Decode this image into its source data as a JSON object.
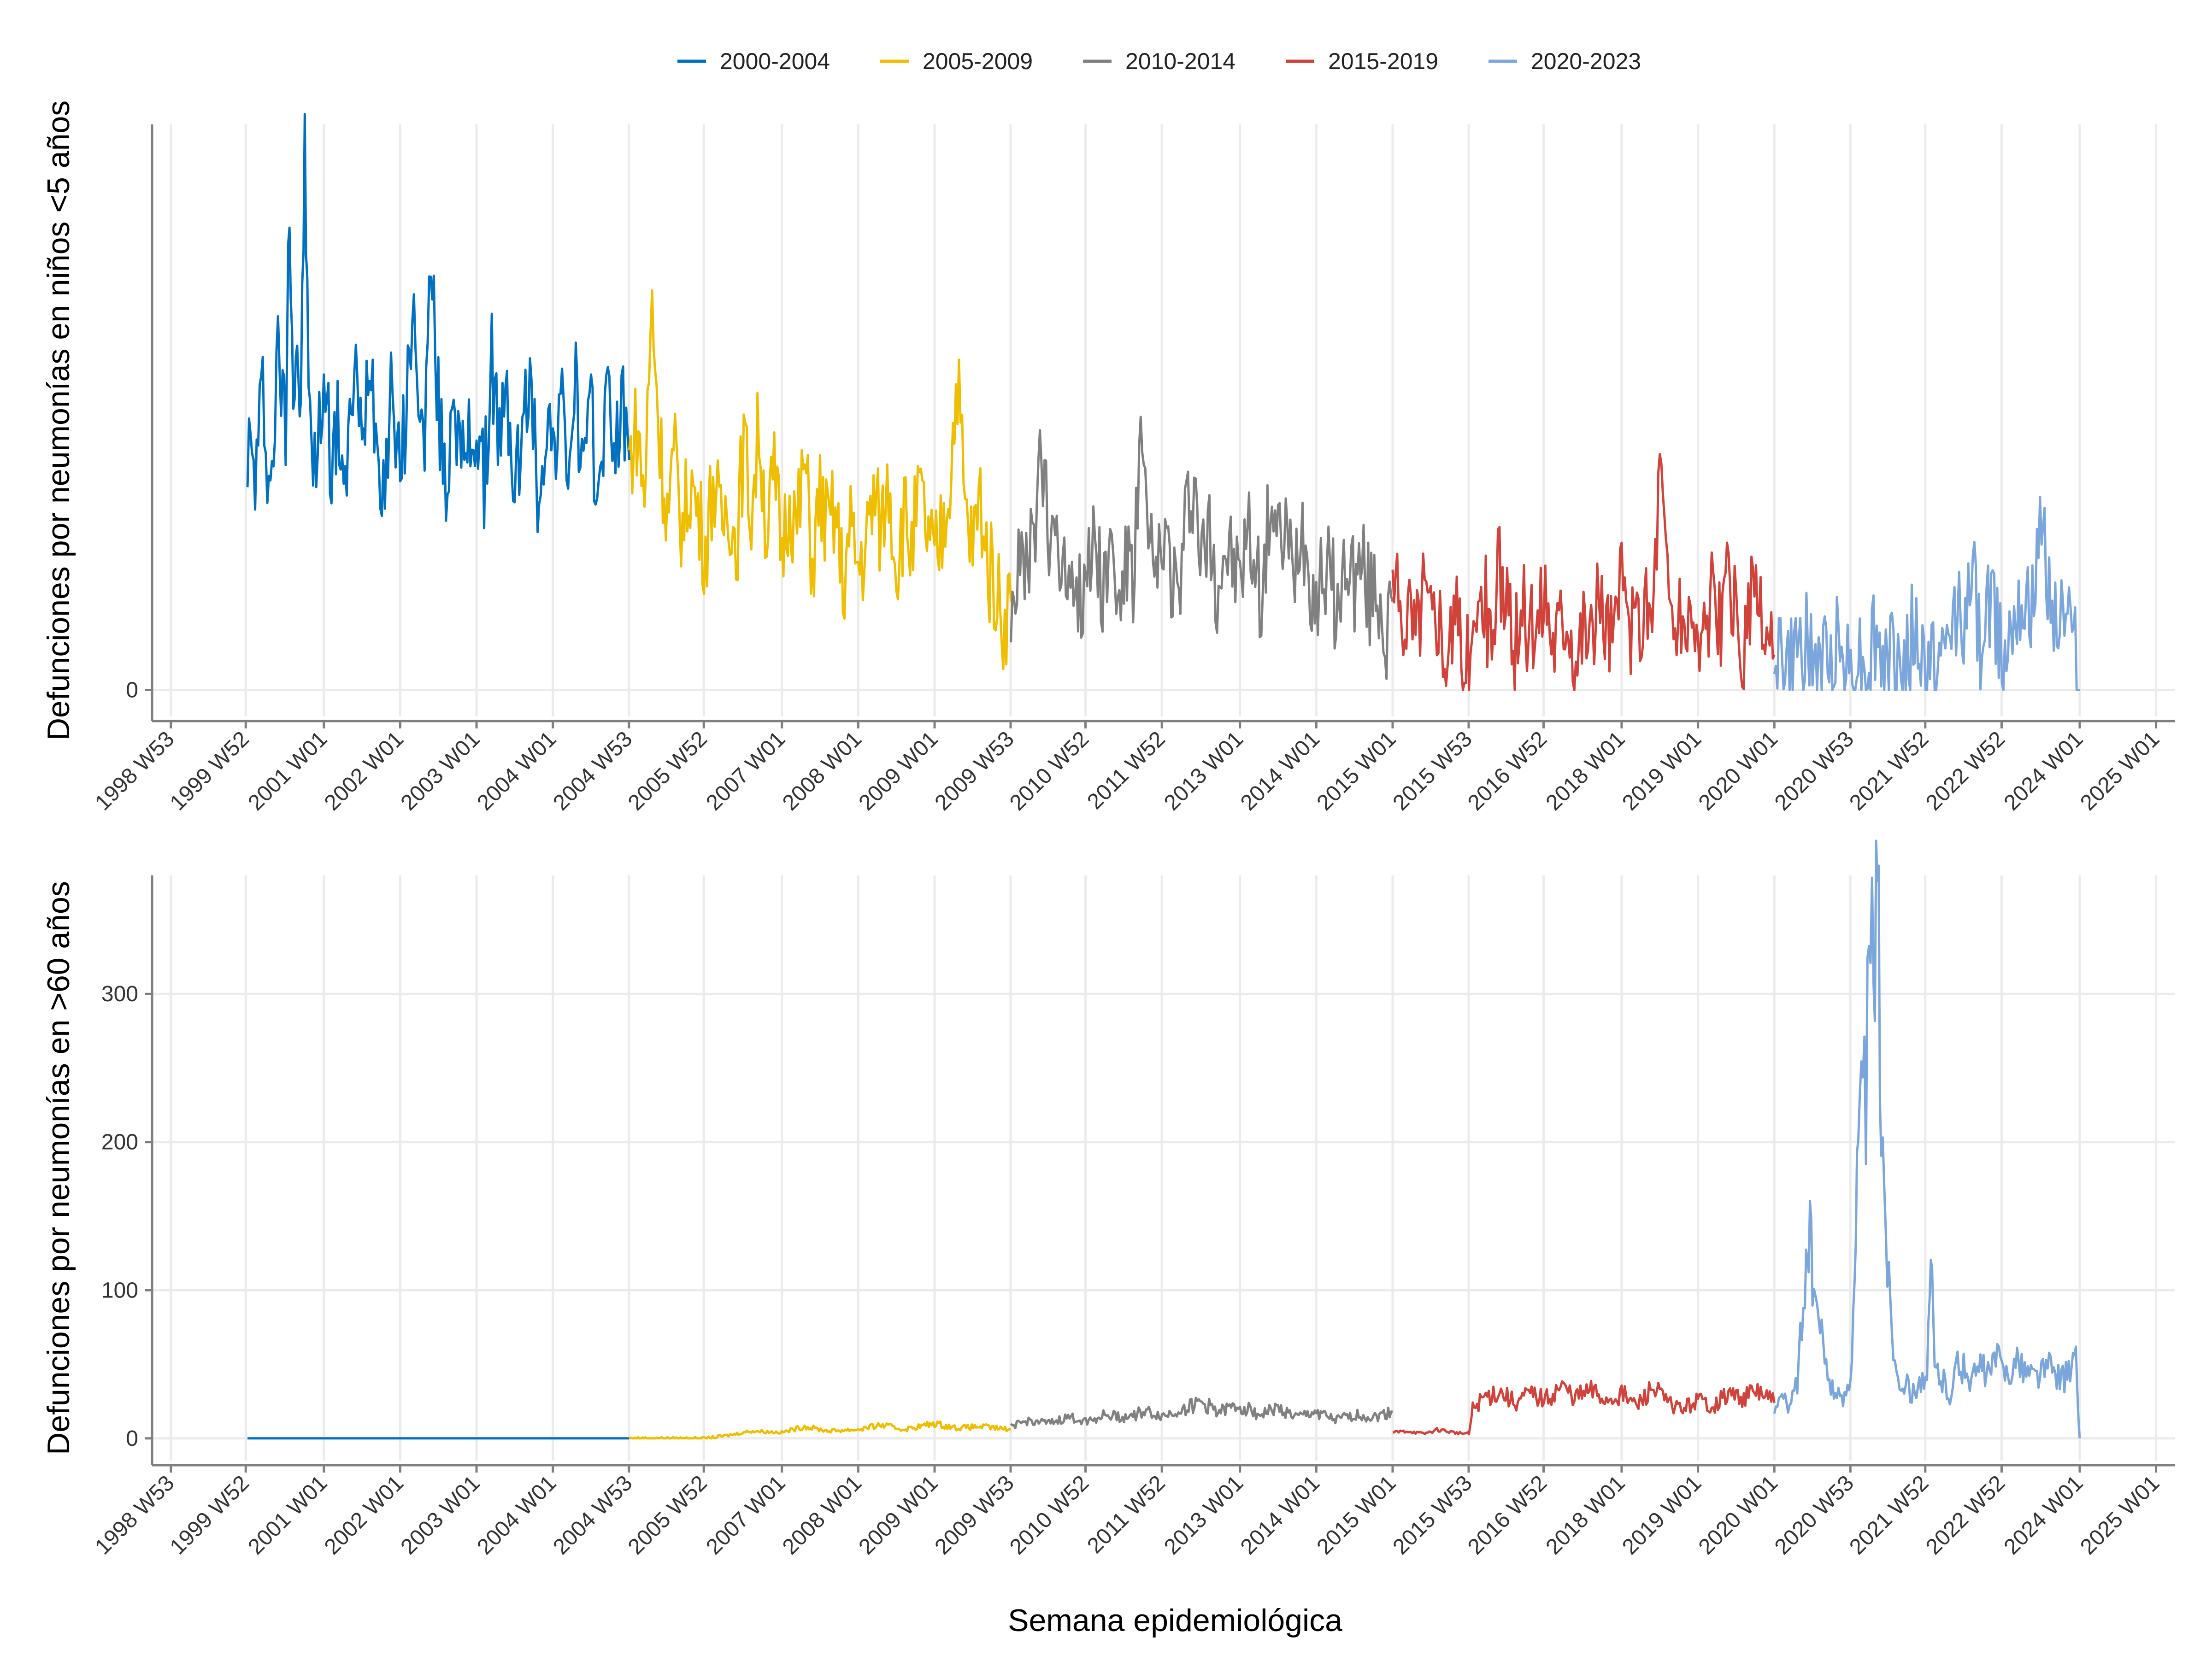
{
  "chart_data": {
    "type": "line",
    "legend_position": "top-center",
    "legend_entries": [
      {
        "label": "2000-2004",
        "color": "#0070C0"
      },
      {
        "label": "2005-2009",
        "color": "#F0BE00"
      },
      {
        "label": "2010-2014",
        "color": "#808080"
      },
      {
        "label": "2015-2019",
        "color": "#D0423A"
      },
      {
        "label": "2020-2023",
        "color": "#7BA6DB"
      }
    ],
    "x_ticks": [
      "1998 W53",
      "1999 W52",
      "2001 W01",
      "2002 W01",
      "2003 W01",
      "2004 W01",
      "2004 W53",
      "2005 W52",
      "2007 W01",
      "2008 W01",
      "2009 W01",
      "2009 W53",
      "2010 W52",
      "2011 W52",
      "2013 W01",
      "2014 W01",
      "2015 W01",
      "2015 W53",
      "2016 W52",
      "2018 W01",
      "2019 W01",
      "2020 W01",
      "2020 W53",
      "2021 W52",
      "2022 W52",
      "2024 W01",
      "2025 W01"
    ],
    "xlabel": "Semana epidemiológica",
    "grid": true,
    "panels": [
      {
        "ylabel": "Defunciones por neumonías en niños <5 años",
        "ylim": [
          -3,
          64
        ],
        "y_ticks": [
          0
        ],
        "series": [
          {
            "name": "2000-2004",
            "color": "#0070C0",
            "x": [
              2000.0,
              2000.1,
              2000.2,
              2000.3,
              2000.4,
              2000.5,
              2000.55,
              2000.6,
              2000.65,
              2000.7,
              2000.75,
              2000.8,
              2000.9,
              2001.0,
              2001.1,
              2001.2,
              2001.3,
              2001.4,
              2001.5,
              2001.6,
              2001.7,
              2001.8,
              2001.9,
              2002.0,
              2002.1,
              2002.2,
              2002.3,
              2002.4,
              2002.5,
              2002.6,
              2002.7,
              2002.8,
              2002.9,
              2003.0,
              2003.1,
              2003.2,
              2003.3,
              2003.4,
              2003.5,
              2003.6,
              2003.7,
              2003.8,
              2003.9,
              2004.0,
              2004.1,
              2004.2,
              2004.3,
              2004.4,
              2004.5,
              2004.6,
              2004.7,
              2004.8,
              2004.9,
              2005.0
            ],
            "values": [
              28,
              24,
              34,
              22,
              38,
              30,
              58,
              34,
              40,
              30,
              63,
              32,
              24,
              36,
              26,
              30,
              22,
              38,
              26,
              40,
              28,
              24,
              36,
              22,
              36,
              42,
              26,
              48,
              32,
              22,
              36,
              24,
              28,
              30,
              22,
              38,
              28,
              32,
              24,
              28,
              36,
              22,
              30,
              28,
              32,
              26,
              34,
              24,
              30,
              22,
              34,
              28,
              32,
              26
            ]
          },
          {
            "name": "2005-2009",
            "color": "#F0BE00",
            "x": [
              2005.0,
              2005.1,
              2005.2,
              2005.3,
              2005.4,
              2005.5,
              2005.6,
              2005.7,
              2005.8,
              2005.9,
              2006.0,
              2006.1,
              2006.2,
              2006.3,
              2006.4,
              2006.5,
              2006.6,
              2006.7,
              2006.8,
              2006.9,
              2007.0,
              2007.1,
              2007.2,
              2007.3,
              2007.4,
              2007.5,
              2007.6,
              2007.7,
              2007.8,
              2007.9,
              2008.0,
              2008.1,
              2008.2,
              2008.3,
              2008.4,
              2008.5,
              2008.6,
              2008.7,
              2008.8,
              2008.9,
              2009.0,
              2009.1,
              2009.2,
              2009.3,
              2009.4,
              2009.5,
              2009.6,
              2009.7,
              2009.8,
              2009.9,
              2010.0
            ],
            "values": [
              26,
              30,
              22,
              44,
              28,
              20,
              26,
              18,
              24,
              20,
              16,
              24,
              18,
              22,
              16,
              28,
              20,
              30,
              18,
              24,
              16,
              22,
              18,
              26,
              14,
              22,
              18,
              20,
              12,
              18,
              14,
              16,
              22,
              18,
              24,
              14,
              20,
              16,
              22,
              18,
              14,
              18,
              24,
              36,
              20,
              16,
              22,
              14,
              12,
              8,
              10
            ]
          },
          {
            "name": "2010-2014",
            "color": "#808080",
            "x": [
              2010.0,
              2010.1,
              2010.2,
              2010.3,
              2010.4,
              2010.5,
              2010.6,
              2010.7,
              2010.8,
              2010.9,
              2011.0,
              2011.1,
              2011.2,
              2011.3,
              2011.4,
              2011.5,
              2011.6,
              2011.7,
              2011.8,
              2011.9,
              2012.0,
              2012.1,
              2012.2,
              2012.3,
              2012.4,
              2012.5,
              2012.6,
              2012.7,
              2012.8,
              2012.9,
              2013.0,
              2013.1,
              2013.2,
              2013.3,
              2013.4,
              2013.5,
              2013.6,
              2013.7,
              2013.8,
              2013.9,
              2014.0,
              2014.1,
              2014.2,
              2014.3,
              2014.4,
              2014.5,
              2014.6,
              2014.7,
              2014.8,
              2014.9,
              2015.0
            ],
            "values": [
              10,
              14,
              12,
              18,
              26,
              16,
              20,
              12,
              16,
              10,
              14,
              18,
              12,
              16,
              10,
              14,
              12,
              28,
              16,
              12,
              18,
              14,
              10,
              20,
              24,
              14,
              18,
              12,
              16,
              14,
              12,
              18,
              14,
              10,
              22,
              16,
              18,
              12,
              20,
              14,
              10,
              14,
              12,
              8,
              16,
              12,
              14,
              10,
              12,
              6,
              10
            ]
          },
          {
            "name": "2015-2019",
            "color": "#D0423A",
            "x": [
              2015.0,
              2015.1,
              2015.2,
              2015.3,
              2015.4,
              2015.5,
              2015.6,
              2015.7,
              2015.8,
              2015.9,
              2016.0,
              2016.1,
              2016.2,
              2016.3,
              2016.4,
              2016.5,
              2016.6,
              2016.7,
              2016.8,
              2016.9,
              2017.0,
              2017.1,
              2017.2,
              2017.3,
              2017.4,
              2017.5,
              2017.6,
              2017.7,
              2017.8,
              2017.9,
              2018.0,
              2018.1,
              2018.2,
              2018.3,
              2018.4,
              2018.5,
              2018.6,
              2018.7,
              2018.8,
              2018.9,
              2019.0,
              2019.1,
              2019.2,
              2019.3,
              2019.4,
              2019.5,
              2019.6,
              2019.7,
              2019.8,
              2019.9,
              2020.0
            ],
            "values": [
              12,
              8,
              10,
              6,
              12,
              8,
              10,
              4,
              8,
              6,
              2,
              8,
              10,
              6,
              14,
              8,
              4,
              10,
              6,
              8,
              12,
              6,
              8,
              10,
              4,
              8,
              6,
              10,
              8,
              6,
              12,
              8,
              6,
              10,
              8,
              26,
              12,
              8,
              6,
              10,
              4,
              8,
              10,
              6,
              12,
              8,
              4,
              10,
              8,
              6,
              4
            ]
          },
          {
            "name": "2020-2023",
            "color": "#7BA6DB",
            "x": [
              2020.0,
              2020.1,
              2020.2,
              2020.3,
              2020.4,
              2020.5,
              2020.6,
              2020.7,
              2020.8,
              2020.9,
              2021.0,
              2021.1,
              2021.2,
              2021.3,
              2021.4,
              2021.5,
              2021.6,
              2021.7,
              2021.8,
              2021.9,
              2022.0,
              2022.1,
              2022.2,
              2022.3,
              2022.4,
              2022.5,
              2022.6,
              2022.7,
              2022.8,
              2022.9,
              2023.0,
              2023.1,
              2023.2,
              2023.3,
              2023.4,
              2023.5,
              2023.6,
              2023.7,
              2023.8,
              2023.9,
              2024.0
            ],
            "values": [
              6,
              4,
              2,
              4,
              6,
              2,
              4,
              2,
              6,
              4,
              2,
              4,
              2,
              6,
              4,
              2,
              4,
              2,
              6,
              4,
              2,
              4,
              2,
              6,
              10,
              8,
              12,
              6,
              10,
              8,
              4,
              8,
              12,
              10,
              8,
              20,
              12,
              8,
              10,
              6,
              0
            ]
          }
        ]
      },
      {
        "ylabel": "Defunciones por neumonías en >60 años",
        "ylim": [
          -15,
          380
        ],
        "y_ticks": [
          0,
          100,
          200,
          300
        ],
        "series": [
          {
            "name": "2000-2004",
            "color": "#0070C0",
            "x": [
              2000.0,
              2005.0
            ],
            "values": [
              0,
              0
            ]
          },
          {
            "name": "2005-2009",
            "color": "#F0BE00",
            "x": [
              2005.0,
              2005.5,
              2006.0,
              2006.3,
              2006.6,
              2007.0,
              2007.3,
              2007.6,
              2008.0,
              2008.3,
              2008.6,
              2009.0,
              2009.3,
              2009.6,
              2010.0
            ],
            "values": [
              0,
              0,
              0,
              2,
              5,
              4,
              8,
              5,
              6,
              9,
              6,
              10,
              7,
              8,
              6
            ]
          },
          {
            "name": "2010-2014",
            "color": "#808080",
            "x": [
              2010.0,
              2010.25,
              2010.5,
              2010.75,
              2011.0,
              2011.25,
              2011.5,
              2011.75,
              2012.0,
              2012.25,
              2012.5,
              2012.75,
              2013.0,
              2013.25,
              2013.5,
              2013.75,
              2014.0,
              2014.25,
              2014.5,
              2014.75,
              2015.0
            ],
            "values": [
              8,
              12,
              10,
              14,
              12,
              16,
              14,
              18,
              15,
              20,
              24,
              18,
              22,
              16,
              20,
              14,
              18,
              12,
              16,
              14,
              18
            ]
          },
          {
            "name": "2015-2019",
            "color": "#D0423A",
            "x": [
              2015.0,
              2015.2,
              2015.4,
              2015.6,
              2015.8,
              2016.0,
              2016.05,
              2016.2,
              2016.4,
              2016.6,
              2016.8,
              2017.0,
              2017.2,
              2017.4,
              2017.6,
              2017.8,
              2018.0,
              2018.2,
              2018.4,
              2018.6,
              2018.8,
              2019.0,
              2019.2,
              2019.4,
              2019.6,
              2019.8,
              2020.0
            ],
            "values": [
              4,
              5,
              3,
              6,
              4,
              3,
              20,
              28,
              32,
              24,
              30,
              26,
              35,
              28,
              32,
              26,
              30,
              22,
              34,
              24,
              20,
              26,
              22,
              30,
              28,
              32,
              24
            ]
          },
          {
            "name": "2020-2023",
            "color": "#7BA6DB",
            "x": [
              2020.0,
              2020.1,
              2020.2,
              2020.3,
              2020.4,
              2020.45,
              2020.5,
              2020.6,
              2020.7,
              2020.8,
              2020.9,
              2021.0,
              2021.05,
              2021.1,
              2021.2,
              2021.3,
              2021.35,
              2021.4,
              2021.5,
              2021.6,
              2021.7,
              2021.8,
              2021.9,
              2022.0,
              2022.05,
              2022.1,
              2022.2,
              2022.3,
              2022.4,
              2022.5,
              2022.6,
              2022.7,
              2022.8,
              2022.9,
              2023.0,
              2023.2,
              2023.4,
              2023.6,
              2023.8,
              2023.95,
              2024.0
            ],
            "values": [
              22,
              28,
              20,
              40,
              105,
              138,
              110,
              70,
              45,
              30,
              25,
              45,
              120,
              195,
              245,
              340,
              360,
              235,
              100,
              45,
              38,
              30,
              40,
              35,
              120,
              48,
              40,
              30,
              50,
              45,
              40,
              48,
              42,
              55,
              45,
              50,
              42,
              48,
              40,
              52,
              0
            ]
          }
        ]
      }
    ]
  }
}
